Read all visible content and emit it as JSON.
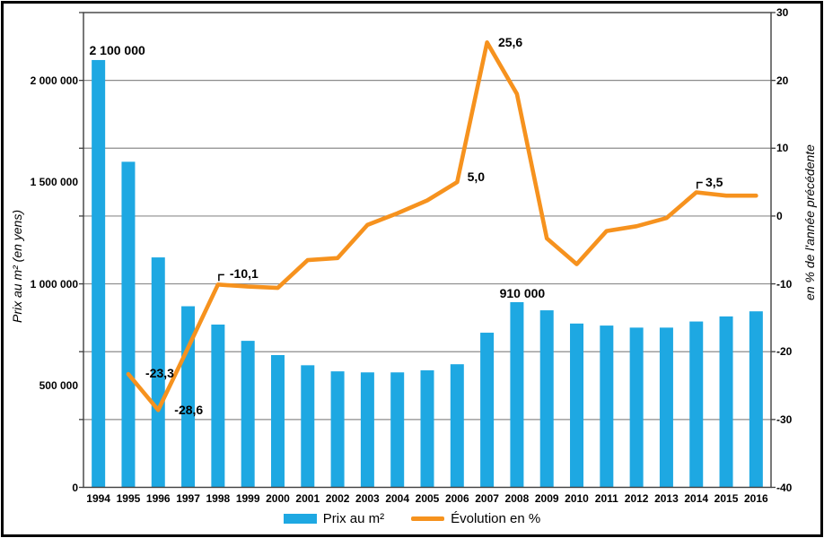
{
  "chart_data": {
    "type": "combo-bar-line",
    "categories": [
      "1994",
      "1995",
      "1996",
      "1997",
      "1998",
      "1999",
      "2000",
      "2001",
      "2002",
      "2003",
      "2004",
      "2005",
      "2006",
      "2007",
      "2008",
      "2009",
      "2010",
      "2011",
      "2012",
      "2013",
      "2014",
      "2015",
      "2016"
    ],
    "series": [
      {
        "name": "Prix au m²",
        "type": "bar",
        "axis": "left",
        "values": [
          2100000,
          1600000,
          1130000,
          890000,
          800000,
          720000,
          650000,
          600000,
          570000,
          565000,
          565000,
          575000,
          605000,
          760000,
          910000,
          870000,
          805000,
          795000,
          785000,
          785000,
          815000,
          840000,
          865000
        ]
      },
      {
        "name": "Évolution en %",
        "type": "line",
        "axis": "right",
        "values": [
          null,
          -23.3,
          -28.6,
          -19.4,
          -10.1,
          -10.4,
          -10.6,
          -6.5,
          -6.2,
          -1.3,
          0.4,
          2.3,
          5.0,
          25.6,
          18.0,
          -3.3,
          -7.1,
          -2.2,
          -1.5,
          -0.3,
          3.5,
          3.0,
          3.0
        ]
      }
    ],
    "left_axis": {
      "title": "Prix au m² (en yens)",
      "tick_labels": [
        "0",
        "500 000",
        "1 000 000",
        "1 500 000",
        "2 000 000"
      ],
      "tick_values": [
        0,
        500000,
        1000000,
        1500000,
        2000000
      ]
    },
    "right_axis": {
      "title": "en % de l'année précédente",
      "tick_labels": [
        "30",
        "20",
        "10",
        "0",
        "-10",
        "-20",
        "-30",
        "-40"
      ],
      "tick_values": [
        30,
        20,
        10,
        0,
        -10,
        -20,
        -30,
        -40
      ],
      "min": -40,
      "max": 30,
      "gridline_values": [
        20,
        10,
        0,
        -10,
        -20,
        -30
      ]
    },
    "annotations": [
      {
        "text": "2 100 000",
        "series": "bar",
        "year": "1994",
        "leader": false
      },
      {
        "text": "-23,3",
        "series": "line",
        "year": "1995",
        "leader": false
      },
      {
        "text": "-28,6",
        "series": "line",
        "year": "1996",
        "leader": false
      },
      {
        "text": "-10,1",
        "series": "line",
        "year": "1998",
        "leader": true
      },
      {
        "text": "5,0",
        "series": "line",
        "year": "2006",
        "leader": false
      },
      {
        "text": "25,6",
        "series": "line",
        "year": "2007",
        "leader": false
      },
      {
        "text": "910 000",
        "series": "bar",
        "year": "2008",
        "leader": false
      },
      {
        "text": "3,5",
        "series": "line",
        "year": "2014",
        "leader": true
      }
    ],
    "legend": [
      {
        "label": "Prix au m²",
        "swatch": "bar"
      },
      {
        "label": "Évolution en %",
        "swatch": "line"
      }
    ],
    "colors": {
      "bar": "#1EA8E2",
      "line": "#F6921E",
      "gridline": "#8C8C8C",
      "axis": "#3F3F3F",
      "text": "#000000"
    }
  }
}
